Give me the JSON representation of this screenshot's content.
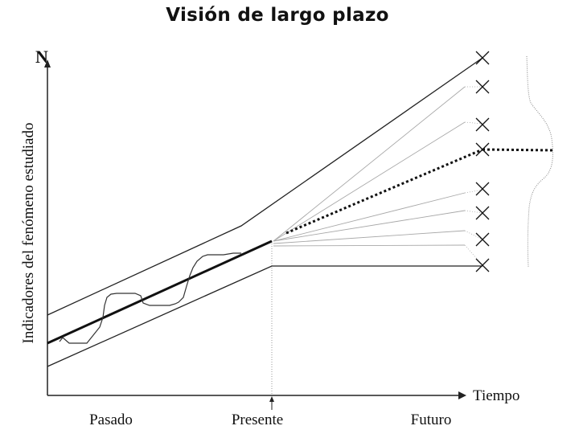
{
  "title": "Visión de largo plazo",
  "axes": {
    "y_letter": "N",
    "y_label": "Indicadores del fenómeno estudiado",
    "x_label": "Tiempo"
  },
  "time_markers": {
    "past": "Pasado",
    "present": "Presente",
    "future": "Futuro"
  },
  "colors": {
    "ink": "#111111",
    "faint": "#9a9a9a"
  }
}
